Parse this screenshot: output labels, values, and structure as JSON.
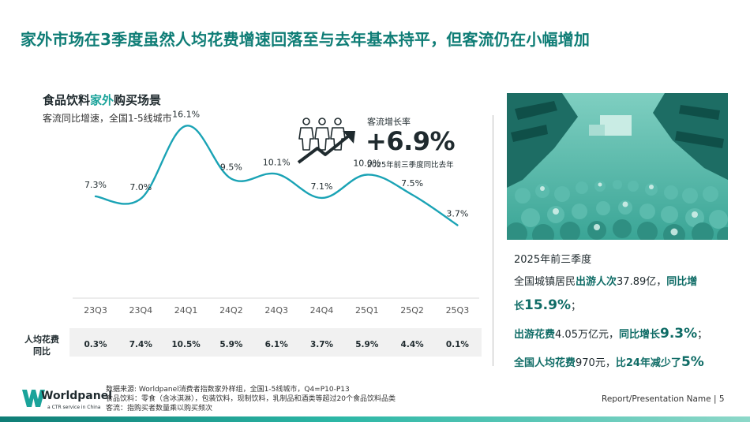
{
  "headline": "家外市场在3季度虽然人均花费增速回落至与去年基本持平，但客流仍在小幅增加",
  "chart_title_pre": "食品饮料",
  "chart_title_hl": "家外",
  "chart_title_post": "购买场景",
  "chart_subtitle": "客流同比增速，全国1-5线城市",
  "kpi": {
    "label": "客流增长率",
    "value": "+6.9%",
    "note": "2025年前三季度同比去年",
    "icon": "people-growth-icon"
  },
  "chart_data": {
    "type": "line",
    "categories": [
      "23Q3",
      "23Q4",
      "24Q1",
      "24Q2",
      "24Q3",
      "24Q4",
      "25Q1",
      "25Q2",
      "25Q3"
    ],
    "series": [
      {
        "values": [
          7.3,
          7.0,
          16.1,
          9.5,
          10.1,
          7.1,
          10.0,
          7.5,
          3.7
        ],
        "labels": [
          "7.3%",
          "7.0%",
          "16.1%",
          "9.5%",
          "10.1%",
          "7.1%",
          "10.0%",
          "7.5%",
          "3.7%"
        ]
      }
    ],
    "line_color": "#1aa3b5",
    "smooth": true,
    "grid": false
  },
  "table": {
    "row_label": "人均花费同比",
    "values": [
      "0.3%",
      "7.4%",
      "10.5%",
      "5.9%",
      "6.1%",
      "3.7%",
      "5.9%",
      "4.4%",
      "0.1%"
    ]
  },
  "stats": {
    "head": "2025年前三季度",
    "l1_a": "全国城镇居民",
    "l1_b": "出游人次",
    "l1_c": "37.89亿，",
    "l1_d": "同比增",
    "l2_a": "长",
    "l2_b": "15.9%",
    "l2_c": "；",
    "l3_a": "出游花费",
    "l3_b": "4.05万亿元，",
    "l3_c": "同比增长",
    "l3_d": "9.3%",
    "l3_e": "；",
    "l4_a": "全国人均花费",
    "l4_b": "970元，",
    "l4_c": "比24年减少了",
    "l4_d": "5%"
  },
  "footer": {
    "brand": "Worldpanel",
    "brand_sub": "a CTR service in China",
    "source_1": "数据来源: Worldpanel消费者指数家外样组，全国1-5线城市，Q4=P10-P13",
    "source_2": "食品饮料：零食（含冰淇淋），包装饮料，现制饮料，乳制品和酒类等超过20个食品饮料品类",
    "source_3": "客流：指购买者数量乘以购买频次",
    "right": "Report/Presentation Name | 5"
  },
  "colors": {
    "accent": "#0f7d76",
    "teal": "#1aa39a",
    "line": "#1aa3b5"
  },
  "photo_icon": "crowd-street-photo"
}
